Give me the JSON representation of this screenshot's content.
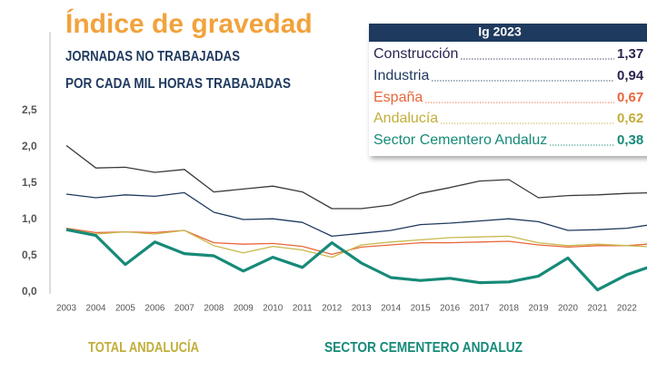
{
  "chart_data": {
    "type": "line",
    "title": "Índice de gravedad",
    "subtitle": [
      "JORNADAS NO TRABAJADAS",
      "POR CADA MIL HORAS TRABAJADAS"
    ],
    "categories": [
      "2003",
      "2004",
      "2005",
      "2006",
      "2007",
      "2008",
      "2009",
      "2010",
      "2011",
      "2012",
      "2013",
      "2014",
      "2015",
      "2016",
      "2017",
      "2018",
      "2019",
      "2020",
      "2021",
      "2022",
      null
    ],
    "series": [
      {
        "name": "Construcción",
        "color": "#3a3a3a",
        "text_color": "#2b2450",
        "width": 1.3,
        "values": [
          2.02,
          1.71,
          1.72,
          1.65,
          1.69,
          1.38,
          1.42,
          1.46,
          1.38,
          1.15,
          1.15,
          1.2,
          1.36,
          1.44,
          1.53,
          1.55,
          1.3,
          1.33,
          1.34,
          1.36,
          1.37
        ]
      },
      {
        "name": "Industria",
        "color": "#1f3a5f",
        "text_color": "#1f3a5f",
        "width": 1.3,
        "values": [
          1.35,
          1.3,
          1.34,
          1.32,
          1.37,
          1.1,
          1.0,
          1.01,
          0.96,
          0.77,
          0.81,
          0.85,
          0.93,
          0.95,
          0.98,
          1.01,
          0.97,
          0.85,
          0.86,
          0.88,
          0.94
        ]
      },
      {
        "name": "España",
        "color": "#e8663a",
        "text_color": "#e8663a",
        "width": 1.3,
        "values": [
          0.88,
          0.82,
          0.83,
          0.82,
          0.85,
          0.68,
          0.66,
          0.67,
          0.63,
          0.52,
          0.62,
          0.65,
          0.68,
          0.68,
          0.69,
          0.7,
          0.65,
          0.62,
          0.64,
          0.64,
          0.67
        ]
      },
      {
        "name": "Andalucía",
        "color": "#c9b84c",
        "text_color": "#c2ae3a",
        "width": 1.3,
        "values": [
          0.87,
          0.8,
          0.83,
          0.8,
          0.85,
          0.64,
          0.54,
          0.63,
          0.58,
          0.48,
          0.65,
          0.69,
          0.72,
          0.75,
          0.76,
          0.77,
          0.68,
          0.64,
          0.66,
          0.64,
          0.62
        ]
      },
      {
        "name": "Sector Cementero Andaluz",
        "color": "#168a78",
        "text_color": "#168a78",
        "width": 3.2,
        "values": [
          0.86,
          0.78,
          0.38,
          0.69,
          0.53,
          0.5,
          0.29,
          0.48,
          0.34,
          0.68,
          0.4,
          0.2,
          0.16,
          0.19,
          0.13,
          0.14,
          0.22,
          0.47,
          0.03,
          0.24,
          0.38
        ]
      }
    ],
    "legend": {
      "title": "Ig 2023",
      "values": [
        1.37,
        0.94,
        0.67,
        0.62,
        0.38
      ],
      "value_labels": [
        "1,37",
        "0,94",
        "0,67",
        "0,62",
        "0,38"
      ]
    },
    "ylim": [
      0,
      2.5
    ],
    "yticks": [
      {
        "value": 0,
        "label": "0,0"
      },
      {
        "value": 0.5,
        "label": "0,5"
      },
      {
        "value": 1,
        "label": "1,0"
      },
      {
        "value": 1.5,
        "label": "1,5"
      },
      {
        "value": 2,
        "label": "2,0"
      },
      {
        "value": 2.5,
        "label": "2,5"
      }
    ],
    "grid": false,
    "sections": [
      "TOTAL ANDALUCÍA",
      "SECTOR CEMENTERO ANDALUZ"
    ]
  }
}
